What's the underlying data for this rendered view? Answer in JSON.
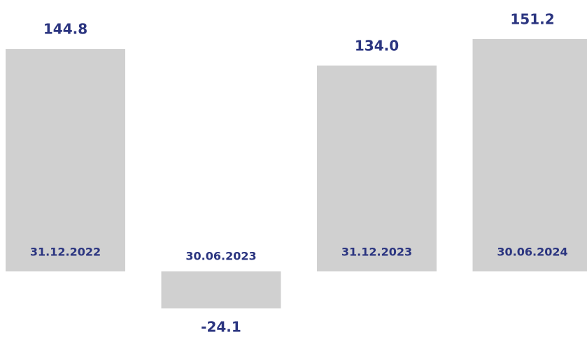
{
  "chart_data": {
    "type": "bar",
    "categories": [
      "31.12.2022",
      "30.06.2023",
      "31.12.2023",
      "30.06.2024"
    ],
    "values": [
      144.8,
      -24.1,
      134.0,
      151.2
    ],
    "value_labels": [
      "144.8",
      "-24.1",
      "134.0",
      "151.2"
    ],
    "color": "#d0d0d0",
    "label_color": "#2b3580"
  }
}
